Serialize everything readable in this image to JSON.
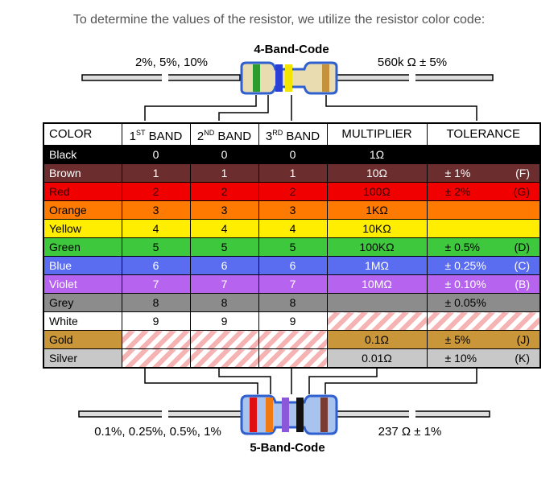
{
  "intro": "To determine the values of the resistor, we utilize the resistor color code:",
  "four_band": {
    "title": "4-Band-Code",
    "left_label": "2%, 5%, 10%",
    "right_label": "560k Ω  ± 5%",
    "bands": [
      "#2e9b2e",
      "#2a3fd6",
      "#f2e600",
      "#c4923c"
    ]
  },
  "five_band": {
    "title": "5-Band-Code",
    "left_label": "0.1%, 0.25%, 0.5%, 1%",
    "right_label": "237 Ω  ± 1%",
    "bands": [
      "#e01010",
      "#f07a10",
      "#8a58d8",
      "#111111",
      "#7a3c30"
    ]
  },
  "table": {
    "headers": [
      "COLOR",
      "1",
      "2",
      "3",
      "MULTIPLIER",
      "TOLERANCE"
    ],
    "band_suffix": [
      "ST",
      "ND",
      "RD"
    ],
    "band_word": "BAND",
    "rows": [
      {
        "name": "Black",
        "bg": "#000000",
        "fg": "#ffffff",
        "b1": "0",
        "b2": "0",
        "b3": "0",
        "mult": "1Ω",
        "tol": "",
        "code": ""
      },
      {
        "name": "Brown",
        "bg": "#6b2d2d",
        "fg": "#ffffff",
        "b1": "1",
        "b2": "1",
        "b3": "1",
        "mult": "10Ω",
        "tol": "± 1%",
        "code": "(F)"
      },
      {
        "name": "Red",
        "bg": "#f00000",
        "fg": "#3a0000",
        "b1": "2",
        "b2": "2",
        "b3": "2",
        "mult": "100Ω",
        "tol": "± 2%",
        "code": "(G)"
      },
      {
        "name": "Orange",
        "bg": "#ff7a00",
        "fg": "#000000",
        "b1": "3",
        "b2": "3",
        "b3": "3",
        "mult": "1KΩ",
        "tol": "",
        "code": ""
      },
      {
        "name": "Yellow",
        "bg": "#ffee00",
        "fg": "#000000",
        "b1": "4",
        "b2": "4",
        "b3": "4",
        "mult": "10KΩ",
        "tol": "",
        "code": ""
      },
      {
        "name": "Green",
        "bg": "#3ec83e",
        "fg": "#000000",
        "b1": "5",
        "b2": "5",
        "b3": "5",
        "mult": "100KΩ",
        "tol": "± 0.5%",
        "code": "(D)"
      },
      {
        "name": "Blue",
        "bg": "#5a6df0",
        "fg": "#ffffff",
        "b1": "6",
        "b2": "6",
        "b3": "6",
        "mult": "1MΩ",
        "tol": "± 0.25%",
        "code": "(C)"
      },
      {
        "name": "Violet",
        "bg": "#b664f0",
        "fg": "#ffffff",
        "b1": "7",
        "b2": "7",
        "b3": "7",
        "mult": "10MΩ",
        "tol": "± 0.10%",
        "code": "(B)"
      },
      {
        "name": "Grey",
        "bg": "#8c8c8c",
        "fg": "#000000",
        "b1": "8",
        "b2": "8",
        "b3": "8",
        "mult": "",
        "tol": "± 0.05%",
        "code": ""
      },
      {
        "name": "White",
        "bg": "#ffffff",
        "fg": "#000000",
        "b1": "9",
        "b2": "9",
        "b3": "9",
        "mult": "",
        "tol": "",
        "code": ""
      },
      {
        "name": "Gold",
        "bg": "#c9973a",
        "fg": "#000000",
        "b1": "",
        "b2": "",
        "b3": "",
        "mult": "0.1Ω",
        "tol": "± 5%",
        "code": "(J)"
      },
      {
        "name": "Silver",
        "bg": "#c8c8c8",
        "fg": "#000000",
        "b1": "",
        "b2": "",
        "b3": "",
        "mult": "0.01Ω",
        "tol": "± 10%",
        "code": "(K)"
      }
    ]
  }
}
